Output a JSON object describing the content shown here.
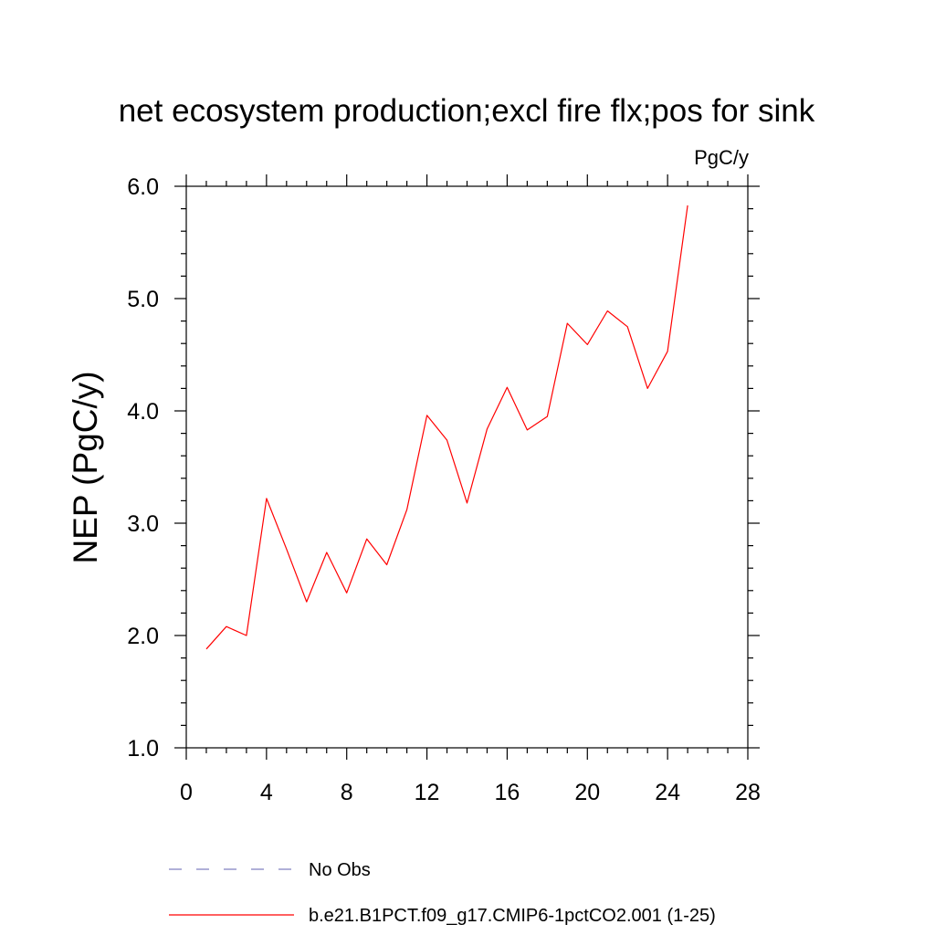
{
  "chart_data": {
    "type": "line",
    "title": "net ecosystem production;excl fire flx;pos for sink",
    "units_label": "PgC/y",
    "ylabel": "NEP  (PgC/y)",
    "xlabel": "",
    "xlim": [
      0,
      28
    ],
    "ylim": [
      1.0,
      6.0
    ],
    "x_ticks": [
      0,
      4,
      8,
      12,
      16,
      20,
      24,
      28
    ],
    "x_tick_labels": [
      "0",
      "4",
      "8",
      "12",
      "16",
      "20",
      "24",
      "28"
    ],
    "y_ticks": [
      1.0,
      2.0,
      3.0,
      4.0,
      5.0,
      6.0
    ],
    "y_tick_labels": [
      "1.0",
      "2.0",
      "3.0",
      "4.0",
      "5.0",
      "6.0"
    ],
    "grid": false,
    "legend_position": "bottom",
    "series": [
      {
        "name": "b.e21.B1PCT.f09_g17.CMIP6-1pctCO2.001 (1-25)",
        "color": "#ff0000",
        "line_style": "solid",
        "x": [
          1,
          2,
          3,
          4,
          5,
          6,
          7,
          8,
          9,
          10,
          11,
          12,
          13,
          14,
          15,
          16,
          17,
          18,
          19,
          20,
          21,
          22,
          23,
          24,
          25
        ],
        "y": [
          1.88,
          2.08,
          2.0,
          3.22,
          2.77,
          2.3,
          2.74,
          2.38,
          2.86,
          2.63,
          3.12,
          3.96,
          3.74,
          3.18,
          3.84,
          4.21,
          3.83,
          3.95,
          4.78,
          4.59,
          4.89,
          4.75,
          4.2,
          4.53,
          5.83
        ]
      }
    ],
    "legend": [
      {
        "label": "No Obs",
        "color": "#8080c0",
        "line_style": "dashed"
      },
      {
        "label": "b.e21.B1PCT.f09_g17.CMIP6-1pctCO2.001 (1-25)",
        "color": "#ff0000",
        "line_style": "solid"
      }
    ]
  }
}
